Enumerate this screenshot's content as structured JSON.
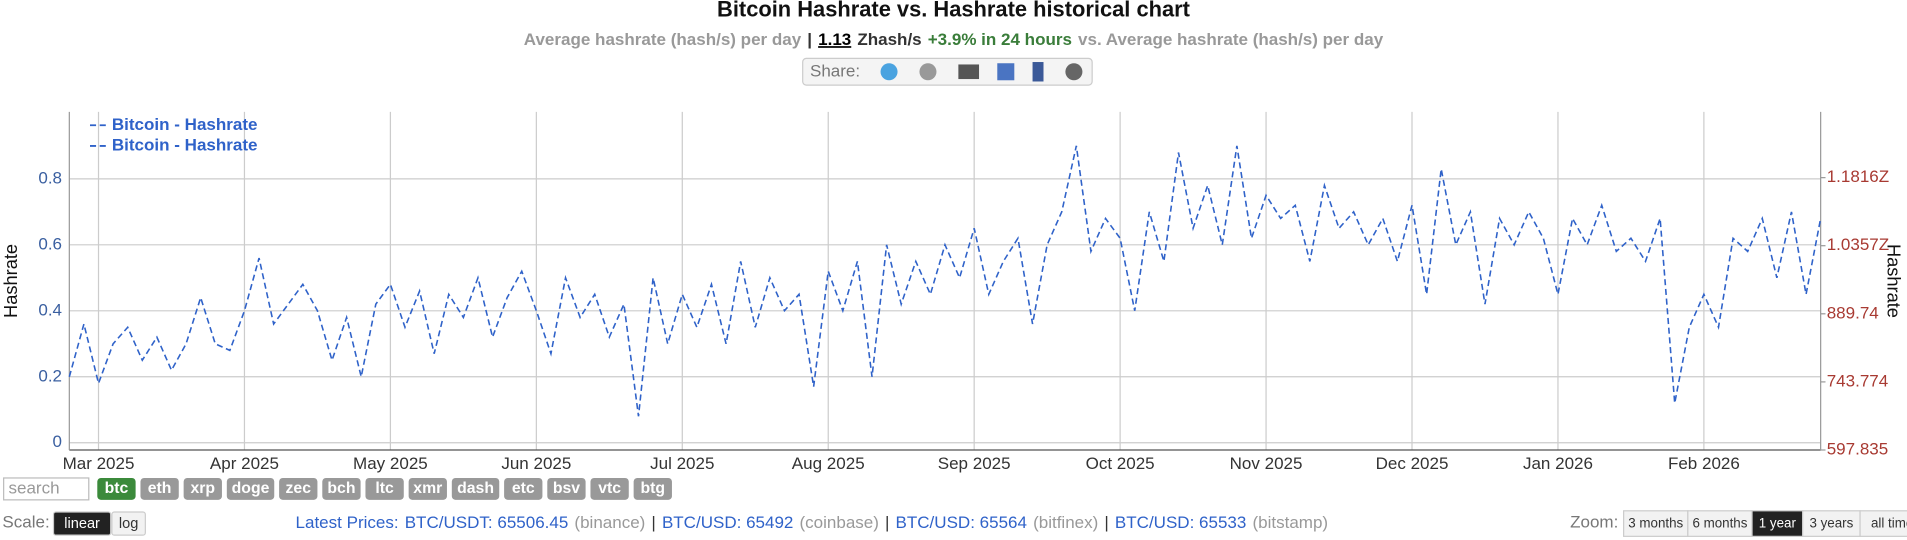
{
  "header": {
    "title": "Bitcoin Hashrate vs. Hashrate historical chart",
    "subtitle": [
      {
        "text": "Average hashrate (hash/s) per day",
        "color": "#999999"
      },
      {
        "text": "|",
        "color": "#333333"
      },
      {
        "text": "1.13",
        "color": "#000000"
      },
      {
        "text": "Zhash/s",
        "color": "#333333"
      },
      {
        "text": "+3.9% in 24 hours",
        "color": "#3a7d3a"
      },
      {
        "text": "vs. Average hashrate (hash/s) per day",
        "color": "#999999"
      }
    ]
  },
  "share": {
    "label": "Share:"
  },
  "search_placeholder": "search",
  "coins": {
    "items": [
      "btc",
      "eth",
      "xrp",
      "doge",
      "zec",
      "bch",
      "ltc",
      "xmr",
      "dash",
      "etc",
      "bsv",
      "vtc",
      "btg"
    ],
    "active": 0
  },
  "scale": {
    "label": "Scale:",
    "options": [
      "linear",
      "log"
    ],
    "active": 0
  },
  "prices": {
    "label": "Latest Prices:",
    "separator": "|",
    "items": [
      {
        "pair": "BTC/USDT: 65506.45",
        "source": "(binance)"
      },
      {
        "pair": "BTC/USD: 65492",
        "source": "(coinbase)"
      },
      {
        "pair": "BTC/USD: 65564",
        "source": "(bitfinex)"
      },
      {
        "pair": "BTC/USD: 65533",
        "source": "(bitstamp)"
      }
    ]
  },
  "zoom": {
    "label": "Zoom:",
    "options": [
      "3 months",
      "6 months",
      "1 year",
      "3 years",
      "all time"
    ],
    "active": 2
  },
  "chart_data": {
    "type": "line",
    "y_label": "Hashrate",
    "y2_label": "Hashrate",
    "categories": [
      null,
      null,
      "Mar 2025",
      null,
      null,
      null,
      null,
      null,
      null,
      null,
      null,
      null,
      "Apr 2025",
      null,
      null,
      null,
      null,
      null,
      null,
      null,
      null,
      null,
      "May 2025",
      null,
      null,
      null,
      null,
      null,
      null,
      null,
      null,
      null,
      "Jun 2025",
      null,
      null,
      null,
      null,
      null,
      null,
      null,
      null,
      null,
      "Jul 2025",
      null,
      null,
      null,
      null,
      null,
      null,
      null,
      null,
      null,
      "Aug 2025",
      null,
      null,
      null,
      null,
      null,
      null,
      null,
      null,
      null,
      "Sep 2025",
      null,
      null,
      null,
      null,
      null,
      null,
      null,
      null,
      null,
      "Oct 2025",
      null,
      null,
      null,
      null,
      null,
      null,
      null,
      null,
      null,
      "Nov 2025",
      null,
      null,
      null,
      null,
      null,
      null,
      null,
      null,
      null,
      "Dec 2025",
      null,
      null,
      null,
      null,
      null,
      null,
      null,
      null,
      null,
      "Jan 2026",
      null,
      null,
      null,
      null,
      null,
      null,
      null,
      null,
      null,
      "Feb 2026",
      null,
      null,
      null,
      null,
      null,
      null,
      null,
      null
    ],
    "series": [
      {
        "name": "Bitcoin - Hashrate",
        "color": "#2f62c9",
        "values": [
          0.2,
          0.36,
          0.18,
          0.3,
          0.35,
          0.25,
          0.32,
          0.22,
          0.3,
          0.44,
          0.3,
          0.28,
          0.4,
          0.56,
          0.36,
          0.42,
          0.48,
          0.4,
          0.25,
          0.38,
          0.2,
          0.42,
          0.48,
          0.35,
          0.46,
          0.27,
          0.45,
          0.38,
          0.5,
          0.32,
          0.44,
          0.52,
          0.4,
          0.27,
          0.5,
          0.38,
          0.45,
          0.32,
          0.42,
          0.08,
          0.5,
          0.3,
          0.45,
          0.35,
          0.48,
          0.3,
          0.55,
          0.35,
          0.5,
          0.4,
          0.45,
          0.17,
          0.52,
          0.4,
          0.55,
          0.2,
          0.6,
          0.42,
          0.55,
          0.45,
          0.6,
          0.5,
          0.65,
          0.45,
          0.55,
          0.62,
          0.36,
          0.6,
          0.7,
          0.9,
          0.58,
          0.68,
          0.62,
          0.4,
          0.7,
          0.55,
          0.88,
          0.65,
          0.78,
          0.6,
          0.9,
          0.62,
          0.75,
          0.68,
          0.72,
          0.55,
          0.78,
          0.65,
          0.7,
          0.6,
          0.68,
          0.55,
          0.72,
          0.45,
          0.83,
          0.6,
          0.7,
          0.42,
          0.68,
          0.6,
          0.7,
          0.62,
          0.45,
          0.68,
          0.6,
          0.72,
          0.58,
          0.62,
          0.55,
          0.68,
          0.12,
          0.35,
          0.45,
          0.35,
          0.62,
          0.58,
          0.68,
          0.5,
          0.7,
          0.45,
          0.68
        ]
      },
      {
        "name": "Bitcoin - Hashrate",
        "color": "#2f62c9",
        "axis": "y2",
        "values": [
          null,
          null,
          null,
          null,
          null,
          null,
          null,
          null,
          null,
          null,
          null,
          null,
          null,
          null,
          null,
          null,
          null,
          null,
          null,
          null,
          null,
          null,
          null,
          null,
          null,
          null,
          null,
          null,
          null,
          null,
          null,
          null,
          null,
          null,
          null,
          null,
          null,
          null,
          null,
          null,
          null,
          null,
          null,
          null,
          null,
          null,
          null,
          null,
          null,
          null,
          null,
          null,
          null,
          null,
          null,
          null,
          null,
          null,
          null,
          null,
          null,
          null,
          null,
          null,
          null,
          null,
          null,
          null,
          null,
          null,
          null,
          null,
          null,
          null,
          null,
          null,
          null,
          null,
          null,
          null,
          null,
          null,
          null,
          null,
          null,
          null,
          null,
          null,
          null,
          null,
          null,
          null,
          null,
          null,
          null,
          null,
          null,
          null,
          null,
          null,
          null,
          null,
          null,
          null,
          null,
          null,
          null,
          null,
          null,
          null,
          null,
          null,
          null,
          null,
          null,
          null,
          null,
          null,
          null,
          null,
          null
        ]
      }
    ],
    "ylim": [
      -0.022,
      1.003
    ],
    "yticks": [
      0,
      0.2,
      0.4,
      0.6,
      0.8
    ],
    "y2lim": [
      597.835,
      1322.5
    ],
    "y2ticks": [
      597.835,
      743.774,
      889.74,
      {
        "value": 1035.7,
        "label": "1.0357Z"
      },
      {
        "value": 1181.6,
        "label": "1.1816Z"
      }
    ],
    "y2_color": "#a83a32",
    "grid": true,
    "legend": "top-left",
    "dashed": true
  }
}
